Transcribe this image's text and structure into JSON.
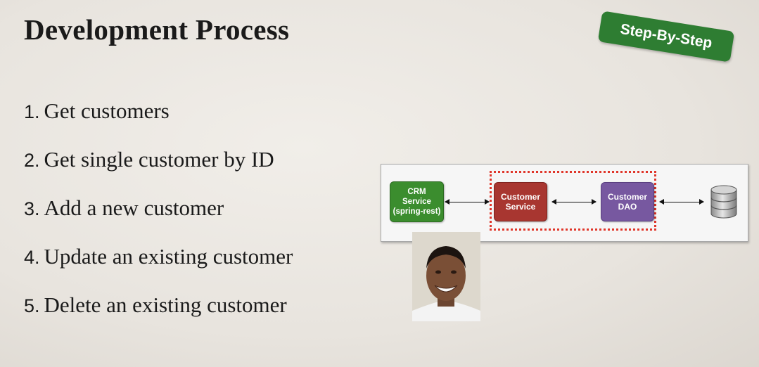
{
  "slide": {
    "title": "Development Process",
    "badge": "Step-By-Step",
    "steps": [
      {
        "num": "1.",
        "label": "Get customers"
      },
      {
        "num": "2.",
        "label": "Get single customer by ID"
      },
      {
        "num": "3.",
        "label": "Add a new customer"
      },
      {
        "num": "4.",
        "label": "Update an existing customer"
      },
      {
        "num": "5.",
        "label": "Delete an existing customer"
      }
    ]
  },
  "diagram": {
    "crm_line1": "CRM",
    "crm_line2": "Service",
    "crm_line3": "(spring-rest)",
    "service_line1": "Customer",
    "service_line2": "Service",
    "dao_line1": "Customer",
    "dao_line2": "DAO",
    "colors": {
      "crm": "#3b8d2e",
      "service": "#a83630",
      "dao": "#7758a0",
      "highlight": "#e0362a",
      "badge": "#2e7d32"
    },
    "database_icon": "database-icon"
  },
  "presenter": {
    "icon": "presenter-photo"
  }
}
